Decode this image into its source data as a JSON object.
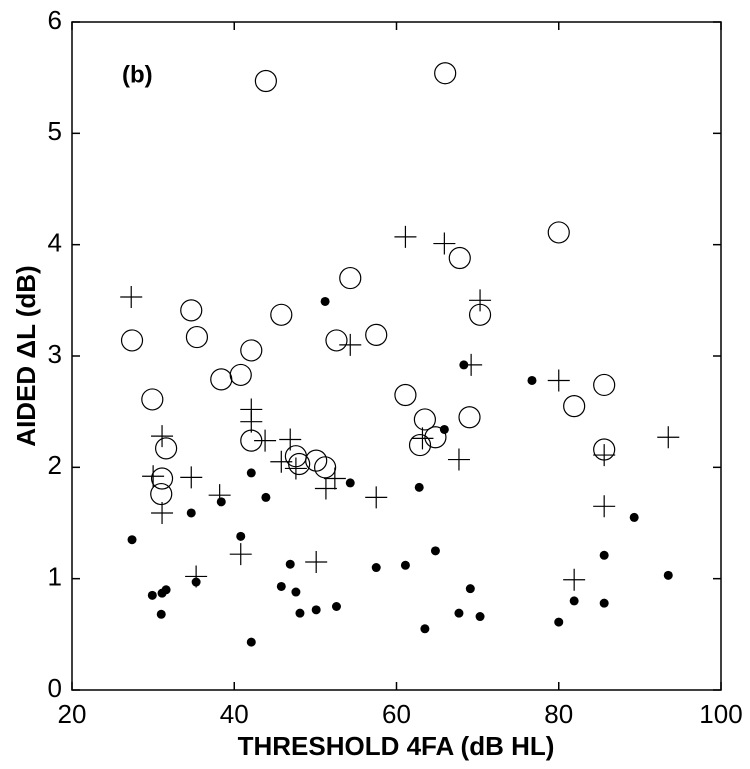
{
  "chart_data": {
    "type": "scatter",
    "annotation": "(b)",
    "x_label": "THRESHOLD 4FA (dB HL)",
    "y_label": "AIDED ΔL (dB)",
    "xlim": [
      20,
      100
    ],
    "xticks": [
      20,
      40,
      60,
      80,
      100
    ],
    "ylim": [
      0,
      6
    ],
    "yticks": [
      0,
      1,
      2,
      3,
      4,
      5,
      6
    ],
    "series": [
      {
        "marker": "open-circle",
        "color": "#000000",
        "x": [
          43.9,
          66.0,
          80.0,
          67.8,
          54.3,
          34.7,
          45.8,
          70.3,
          35.4,
          27.4,
          57.5,
          52.6,
          42.1,
          40.8,
          38.4,
          85.6,
          29.9,
          61.1,
          81.9,
          63.5,
          69.0,
          42.1,
          31.6,
          62.9,
          64.8,
          85.6,
          47.6,
          48.0,
          50.1,
          51.2,
          31.1,
          31.0
        ],
        "values": [
          5.47,
          5.54,
          4.11,
          3.88,
          3.7,
          3.41,
          3.37,
          3.37,
          3.17,
          3.14,
          3.19,
          3.14,
          3.05,
          2.83,
          2.79,
          2.74,
          2.61,
          2.65,
          2.55,
          2.43,
          2.45,
          2.24,
          2.17,
          2.2,
          2.27,
          2.16,
          2.1,
          2.03,
          2.06,
          2.0,
          1.9,
          1.76
        ]
      },
      {
        "marker": "plus",
        "color": "#000000",
        "x": [
          27.3,
          61.1,
          65.9,
          70.3,
          54.3,
          69.2,
          80.0,
          42.1,
          42.1,
          31.1,
          43.8,
          46.9,
          63.2,
          93.5,
          85.6,
          45.8,
          47.6,
          67.7,
          30.0,
          34.7,
          52.4,
          31.1,
          38.2,
          51.3,
          57.5,
          85.6,
          40.8,
          35.3,
          50.1,
          81.9
        ],
        "values": [
          3.53,
          4.07,
          4.01,
          3.5,
          3.1,
          2.92,
          2.78,
          2.52,
          2.41,
          2.28,
          2.24,
          2.25,
          2.26,
          2.27,
          2.11,
          2.05,
          1.99,
          2.07,
          1.92,
          1.91,
          1.9,
          1.59,
          1.75,
          1.81,
          1.73,
          1.65,
          1.22,
          1.02,
          1.15,
          0.99
        ]
      },
      {
        "marker": "dot",
        "color": "#000000",
        "x": [
          51.2,
          27.4,
          68.3,
          76.7,
          65.9,
          42.1,
          62.8,
          43.9,
          54.3,
          34.7,
          38.4,
          40.8,
          89.3,
          85.6,
          64.8,
          46.9,
          57.5,
          61.1,
          35.3,
          93.5,
          45.8,
          47.6,
          69.1,
          29.9,
          31.1,
          31.6,
          31.0,
          48.1,
          50.1,
          52.6,
          81.9,
          85.6,
          67.7,
          70.3,
          63.5,
          80.0,
          42.1
        ],
        "values": [
          3.49,
          1.35,
          2.92,
          2.78,
          2.34,
          1.95,
          1.82,
          1.73,
          1.86,
          1.59,
          1.69,
          1.38,
          1.55,
          1.21,
          1.25,
          1.13,
          1.1,
          1.12,
          0.97,
          1.03,
          0.93,
          0.88,
          0.91,
          0.85,
          0.87,
          0.9,
          0.68,
          0.69,
          0.72,
          0.75,
          0.8,
          0.78,
          0.69,
          0.66,
          0.55,
          0.61,
          0.43
        ]
      }
    ]
  }
}
